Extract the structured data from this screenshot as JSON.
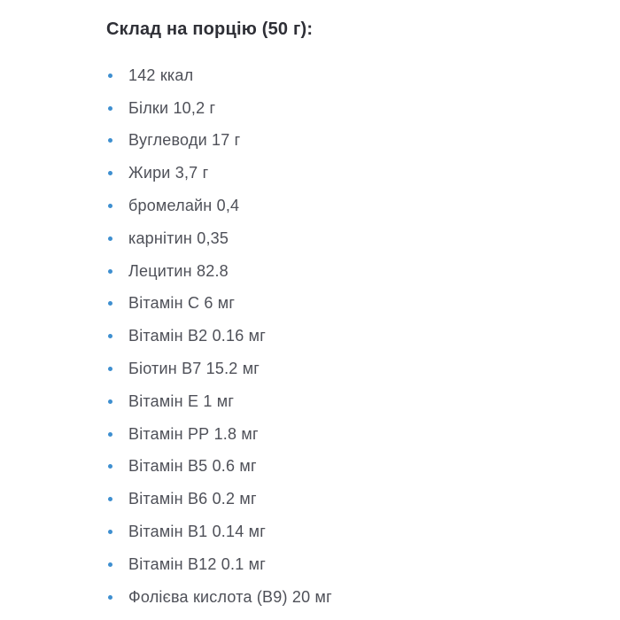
{
  "section": {
    "heading": "Склад на порцію (50 г):",
    "colors": {
      "heading": "#2e2f36",
      "text": "#4e5058",
      "bullet": "#3e8fd0",
      "background": "#ffffff"
    },
    "items": [
      "142 ккал",
      "Білки 10,2 г",
      "Вуглеводи 17 г",
      "Жири 3,7 г",
      "бромелайн 0,4",
      "карнітин 0,35",
      "Лецитин 82.8",
      "Вітамін С 6 мг",
      "Вітамін В2 0.16 мг",
      "Біотин В7 15.2 мг",
      "Вітамін Е 1 мг",
      "Вітамін РР 1.8 мг",
      "Вітамін В5 0.6 мг",
      "Вітамін В6 0.2 мг",
      "Вітамін В1 0.14 мг",
      "Вітамін В12 0.1 мг",
      "Фолієва кислота (В9) 20 мг"
    ]
  }
}
